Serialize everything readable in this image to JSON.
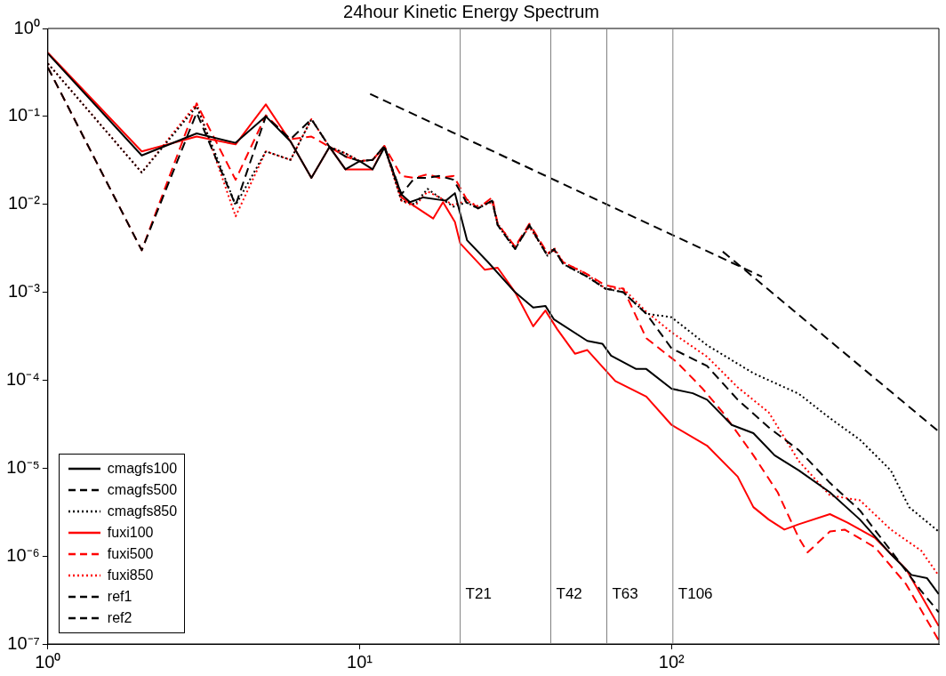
{
  "chart_data": {
    "type": "line",
    "title": "24hour Kinetic Energy Spectrum",
    "log": "xy",
    "grid": false,
    "legend": "bottom left",
    "marker": "none",
    "xlim": [
      1,
      720
    ],
    "xticks": [
      {
        "value": 1,
        "label": "10⁰"
      },
      {
        "value": 10,
        "label": "10¹"
      },
      {
        "value": 100,
        "label": "10²"
      }
    ],
    "ylim": [
      1e-07,
      1
    ],
    "yticks": [
      {
        "value": 1e-07,
        "label": "10⁻⁷"
      },
      {
        "value": 1e-06,
        "label": "10⁻⁶"
      },
      {
        "value": 1e-05,
        "label": "10⁻⁵"
      },
      {
        "value": 0.0001,
        "label": "10⁻⁴"
      },
      {
        "value": 0.001,
        "label": "10⁻³"
      },
      {
        "value": 0.01,
        "label": "10⁻²"
      },
      {
        "value": 0.1,
        "label": "10⁻¹"
      },
      {
        "value": 1,
        "label": "10⁰"
      }
    ],
    "ref_lines": [
      {
        "axis": "x",
        "value": 21,
        "label": "T21",
        "color": "#808080"
      },
      {
        "axis": "x",
        "value": 41,
        "label": "T42",
        "color": "#808080"
      },
      {
        "axis": "x",
        "value": 62,
        "label": "T63",
        "color": "#808080"
      },
      {
        "axis": "x",
        "value": 101,
        "label": "T106",
        "color": "#808080"
      }
    ],
    "series": [
      {
        "name": "cmagfs100",
        "color": "#000000",
        "line_style": "solid",
        "x": [
          1,
          2,
          3,
          4,
          5,
          6,
          7,
          8,
          9,
          10,
          11,
          12,
          13.6,
          14.5,
          16,
          18.9,
          20.2,
          22.1,
          25.8,
          31.5,
          36,
          39.4,
          42,
          53.7,
          60,
          64,
          77,
          83,
          100,
          117,
          130,
          156,
          183,
          214,
          256,
          322,
          402,
          505,
          588,
          660,
          719
        ],
        "values": [
          0.52,
          0.036,
          0.064,
          0.05,
          0.1,
          0.052,
          0.02,
          0.045,
          0.025,
          0.031,
          0.025,
          0.044,
          0.013,
          0.0106,
          0.012,
          0.011,
          0.0134,
          0.0039,
          0.0022,
          0.001,
          0.00067,
          0.0007,
          0.00049,
          0.00028,
          0.00026,
          0.00019,
          0.000134,
          0.000134,
          8e-05,
          7.1e-05,
          6e-05,
          3.1e-05,
          2.5e-05,
          1.4e-05,
          9.4e-06,
          5.3e-06,
          2.6e-06,
          1.05e-06,
          6.1e-07,
          5.6e-07,
          3.7e-07
        ]
      },
      {
        "name": "cmagfs500",
        "color": "#000000",
        "line_style": "dashed",
        "x": [
          1,
          2,
          3,
          4,
          5,
          6,
          7,
          8,
          9,
          10,
          11,
          12,
          13.6,
          15,
          16.5,
          18,
          20,
          22,
          24,
          26.6,
          27.7,
          31.5,
          35,
          40,
          42,
          44.9,
          53.7,
          61.3,
          70,
          83,
          100,
          130,
          163,
          205,
          256,
          322,
          402,
          505,
          632,
          719
        ],
        "values": [
          0.36,
          0.003,
          0.11,
          0.0098,
          0.1,
          0.055,
          0.093,
          0.045,
          0.035,
          0.031,
          0.032,
          0.046,
          0.013,
          0.02,
          0.02,
          0.021,
          0.019,
          0.0105,
          0.009,
          0.011,
          0.0058,
          0.0031,
          0.0058,
          0.0026,
          0.0031,
          0.0021,
          0.0015,
          0.0011,
          0.001,
          0.00057,
          0.00023,
          0.000145,
          6e-05,
          2.9e-05,
          1.6e-05,
          6.8e-06,
          3.3e-06,
          1.15e-06,
          4e-07,
          2.3e-07
        ]
      },
      {
        "name": "cmagfs850",
        "color": "#000000",
        "line_style": "dotted",
        "x": [
          1,
          2,
          3,
          4,
          5,
          6,
          7,
          8,
          9,
          10,
          11,
          12,
          13.6,
          15,
          16.5,
          18,
          20,
          22,
          24,
          26.6,
          27.7,
          31.5,
          35,
          40,
          42,
          44.9,
          53.7,
          61.3,
          70,
          83,
          100,
          130,
          183,
          256,
          322,
          402,
          505,
          578,
          719
        ],
        "values": [
          0.4,
          0.023,
          0.13,
          0.0098,
          0.04,
          0.032,
          0.093,
          0.045,
          0.038,
          0.031,
          0.032,
          0.046,
          0.011,
          0.01,
          0.015,
          0.012,
          0.0094,
          0.0105,
          0.009,
          0.011,
          0.0058,
          0.0031,
          0.0058,
          0.0026,
          0.0031,
          0.0021,
          0.0015,
          0.0011,
          0.001,
          0.00057,
          0.00052,
          0.00025,
          0.00012,
          7e-05,
          3.7e-05,
          2.1e-05,
          9.4e-06,
          3.6e-06,
          1.9e-06
        ]
      },
      {
        "name": "fuxi100",
        "color": "#ff0000",
        "line_style": "solid",
        "x": [
          1,
          2,
          3,
          4,
          5,
          6,
          7,
          8,
          9,
          10,
          11,
          12,
          13.6,
          15,
          17.2,
          18.5,
          20.2,
          21,
          25.2,
          27.7,
          31.5,
          36,
          39.4,
          43,
          49,
          53.7,
          66,
          83,
          100,
          130,
          163,
          183,
          205,
          230,
          256,
          322,
          367,
          450,
          565,
          719
        ],
        "values": [
          0.53,
          0.04,
          0.059,
          0.048,
          0.137,
          0.052,
          0.02,
          0.045,
          0.025,
          0.025,
          0.025,
          0.046,
          0.012,
          0.0095,
          0.0069,
          0.0106,
          0.0063,
          0.0036,
          0.0018,
          0.0019,
          0.001,
          0.00041,
          0.00062,
          0.00038,
          0.0002,
          0.00022,
          9.8e-05,
          6.5e-05,
          3.1e-05,
          1.8e-05,
          8e-06,
          3.6e-06,
          2.6e-06,
          2e-06,
          2.3e-06,
          3e-06,
          2.4e-06,
          1.6e-06,
          7.1e-07,
          1.6e-07
        ]
      },
      {
        "name": "fuxi500",
        "color": "#ff0000",
        "line_style": "dashed",
        "x": [
          1,
          2,
          3,
          4,
          5,
          6,
          7,
          8,
          9,
          10,
          11,
          12,
          13.6,
          15,
          16.5,
          18,
          20,
          22,
          24,
          26.6,
          27.7,
          31.5,
          35,
          40,
          42,
          44.9,
          53.7,
          61.3,
          70,
          83,
          104,
          125,
          146,
          183,
          219,
          256,
          273,
          322,
          359,
          450,
          565,
          719
        ],
        "values": [
          0.36,
          0.003,
          0.14,
          0.019,
          0.103,
          0.055,
          0.059,
          0.045,
          0.035,
          0.031,
          0.032,
          0.046,
          0.021,
          0.02,
          0.022,
          0.02,
          0.021,
          0.0115,
          0.009,
          0.012,
          0.006,
          0.0033,
          0.006,
          0.0028,
          0.003,
          0.0022,
          0.0016,
          0.0012,
          0.0011,
          0.0003,
          0.00016,
          8.2e-05,
          4.3e-05,
          1.4e-05,
          5.3e-06,
          1.6e-06,
          1.1e-06,
          1.9e-06,
          2e-06,
          1.25e-06,
          4.8e-07,
          1.1e-07
        ]
      },
      {
        "name": "fuxi850",
        "color": "#ff0000",
        "line_style": "dotted",
        "x": [
          1,
          2,
          3,
          4,
          5,
          6,
          7,
          8,
          9,
          10,
          11,
          12,
          13.6,
          15,
          16.5,
          18,
          20,
          22,
          24,
          26.6,
          27.7,
          31.5,
          35,
          40,
          42,
          44.9,
          53.7,
          61.3,
          70,
          83,
          100,
          130,
          163,
          205,
          256,
          322,
          402,
          505,
          632,
          719
        ],
        "values": [
          0.4,
          0.023,
          0.14,
          0.0073,
          0.04,
          0.032,
          0.093,
          0.045,
          0.038,
          0.031,
          0.032,
          0.046,
          0.011,
          0.0095,
          0.014,
          0.012,
          0.0098,
          0.011,
          0.0095,
          0.0105,
          0.006,
          0.0033,
          0.0055,
          0.0027,
          0.0032,
          0.0022,
          0.0016,
          0.0011,
          0.0011,
          0.0006,
          0.00035,
          0.000185,
          8.3e-05,
          4.3e-05,
          1.2e-05,
          4.9e-06,
          4.3e-06,
          2e-06,
          1.15e-06,
          6e-07
        ]
      },
      {
        "name": "ref1",
        "color": "#000000",
        "line_style": "dashed",
        "x": [
          10.8,
          195
        ],
        "values": [
          0.18,
          0.0015
        ]
      },
      {
        "name": "ref2",
        "color": "#000000",
        "line_style": "dashed",
        "x": [
          146,
          720
        ],
        "values": [
          0.0029,
          2.6e-05
        ]
      }
    ]
  }
}
